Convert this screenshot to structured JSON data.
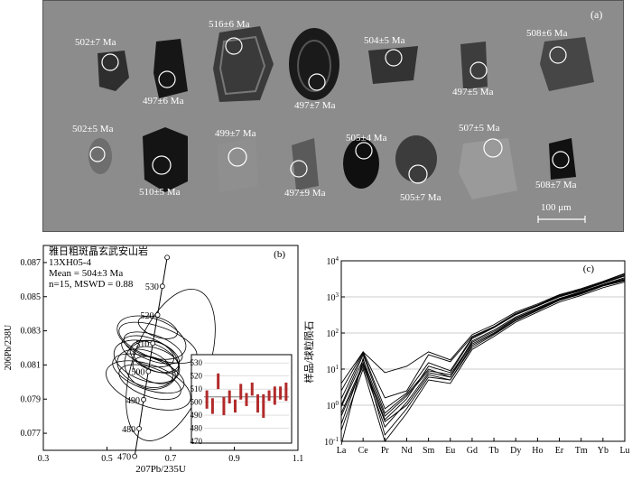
{
  "panel_a": {
    "label": "(a)",
    "scale_bar": "100 μm",
    "ages": [
      "502±7 Ma",
      "497±6 Ma",
      "516±6 Ma",
      "497±7 Ma",
      "504±5 Ma",
      "497±5 Ma",
      "508±6 Ma",
      "502±5 Ma",
      "510±5 Ma",
      "499±7 Ma",
      "497±9 Ma",
      "505±4 Ma",
      "505±7 Ma",
      "507±5 Ma",
      "508±7 Ma"
    ]
  },
  "panel_b": {
    "label": "(b)",
    "title_line1": "雅日粗斑晶玄武安山岩",
    "title_line2": "13XH05-4",
    "title_line3": "Mean = 504±3 Ma",
    "title_line4": "n=15, MSWD = 0.88",
    "xlabel": "207Pb/235U",
    "ylabel": "206Pb/238U",
    "x_ticks": [
      "0.3",
      "0.5",
      "0.7",
      "0.9",
      "1.1"
    ],
    "y_ticks": [
      "0.077",
      "0.079",
      "0.081",
      "0.083",
      "0.085",
      "0.087"
    ],
    "concordia_ages": [
      "470",
      "480",
      "490",
      "500",
      "510",
      "520",
      "530"
    ],
    "inset_y_ticks": [
      "530",
      "520",
      "510",
      "500",
      "490",
      "480",
      "470"
    ]
  },
  "panel_c": {
    "label": "(c)",
    "ylabel": "样品/球粒陨石",
    "elements": [
      "La",
      "Ce",
      "Pr",
      "Nd",
      "Sm",
      "Eu",
      "Gd",
      "Tb",
      "Dy",
      "Ho",
      "Er",
      "Tm",
      "Yb",
      "Lu"
    ],
    "y_tick_exponents": [
      "4",
      "3",
      "2",
      "1",
      "0",
      "-1"
    ]
  },
  "chart_data": [
    {
      "type": "scatter",
      "title": "",
      "xlabel": "207Pb/235U",
      "ylabel": "206Pb/238U",
      "xlim": [
        0.3,
        1.1
      ],
      "ylim": [
        0.076,
        0.088
      ],
      "concordia": [
        {
          "age": 470,
          "x": 0.587,
          "y": 0.07565
        },
        {
          "age": 480,
          "x": 0.601,
          "y": 0.07727
        },
        {
          "age": 490,
          "x": 0.615,
          "y": 0.07897
        },
        {
          "age": 500,
          "x": 0.63,
          "y": 0.08062
        },
        {
          "age": 510,
          "x": 0.644,
          "y": 0.08227
        },
        {
          "age": 520,
          "x": 0.659,
          "y": 0.08393
        },
        {
          "age": 530,
          "x": 0.674,
          "y": 0.08561
        },
        {
          "age": 540,
          "x": 0.689,
          "y": 0.0873
        }
      ],
      "ellipses": [
        {
          "cx": 0.64,
          "cy": 0.081,
          "rx": 0.075,
          "ry": 0.0016
        },
        {
          "cx": 0.625,
          "cy": 0.0812,
          "rx": 0.06,
          "ry": 0.002
        },
        {
          "cx": 0.65,
          "cy": 0.0815,
          "rx": 0.045,
          "ry": 0.0015
        },
        {
          "cx": 0.63,
          "cy": 0.0805,
          "rx": 0.05,
          "ry": 0.0022
        },
        {
          "cx": 0.645,
          "cy": 0.082,
          "rx": 0.04,
          "ry": 0.0018
        },
        {
          "cx": 0.62,
          "cy": 0.0808,
          "rx": 0.055,
          "ry": 0.0017
        },
        {
          "cx": 0.66,
          "cy": 0.0823,
          "rx": 0.05,
          "ry": 0.0024
        },
        {
          "cx": 0.635,
          "cy": 0.08,
          "rx": 0.045,
          "ry": 0.0019
        },
        {
          "cx": 0.655,
          "cy": 0.0813,
          "rx": 0.035,
          "ry": 0.0014
        },
        {
          "cx": 0.64,
          "cy": 0.0826,
          "rx": 0.06,
          "ry": 0.0021
        },
        {
          "cx": 0.628,
          "cy": 0.0818,
          "rx": 0.042,
          "ry": 0.0016
        },
        {
          "cx": 0.648,
          "cy": 0.0807,
          "rx": 0.038,
          "ry": 0.0013
        },
        {
          "cx": 0.66,
          "cy": 0.0832,
          "rx": 0.03,
          "ry": 0.0012
        },
        {
          "cx": 0.7,
          "cy": 0.081,
          "rx": 0.25,
          "ry": 0.0022
        },
        {
          "cx": 0.63,
          "cy": 0.0798,
          "rx": 0.065,
          "ry": 0.0026
        }
      ]
    },
    {
      "type": "bar",
      "title": "",
      "ylim": [
        470,
        535
      ],
      "values": [
        502,
        497,
        516,
        497,
        504,
        497,
        508,
        502,
        510,
        499,
        497,
        505,
        505,
        507,
        508
      ],
      "errors": [
        7,
        6,
        6,
        7,
        5,
        5,
        6,
        5,
        5,
        7,
        9,
        4,
        7,
        5,
        7
      ]
    },
    {
      "type": "line",
      "title": "",
      "xlabel": "",
      "ylabel": "样品/球粒陨石",
      "yscale": "log",
      "ylim": [
        0.1,
        10000
      ],
      "categories": [
        "La",
        "Ce",
        "Pr",
        "Nd",
        "Sm",
        "Eu",
        "Gd",
        "Tb",
        "Dy",
        "Ho",
        "Er",
        "Tm",
        "Yb",
        "Lu"
      ],
      "series": [
        {
          "values": [
            2.5,
            30,
            1.6,
            2.5,
            25,
            16,
            80,
            150,
            350,
            600,
            1100,
            1600,
            2600,
            4300
          ]
        },
        {
          "values": [
            1.0,
            25,
            0.6,
            2.0,
            10,
            6,
            60,
            120,
            280,
            500,
            900,
            1400,
            2200,
            3400
          ]
        },
        {
          "values": [
            0.5,
            12,
            0.25,
            1.2,
            8,
            6,
            50,
            100,
            250,
            450,
            850,
            1300,
            2100,
            3000
          ]
        },
        {
          "values": [
            0.08,
            20,
            0.15,
            0.8,
            6,
            5,
            40,
            90,
            220,
            420,
            800,
            1200,
            2000,
            2800
          ]
        },
        {
          "values": [
            0.3,
            15,
            0.4,
            1.5,
            12,
            8,
            70,
            140,
            320,
            560,
            1000,
            1500,
            2400,
            3800
          ]
        },
        {
          "values": [
            0.9,
            18,
            0.5,
            1.8,
            9,
            7,
            55,
            110,
            260,
            470,
            870,
            1350,
            2150,
            3200
          ]
        },
        {
          "values": [
            0.2,
            10,
            0.1,
            0.6,
            5,
            4,
            35,
            80,
            200,
            380,
            720,
            1100,
            1800,
            2600
          ]
        },
        {
          "values": [
            1.5,
            28,
            0.8,
            2.2,
            15,
            9,
            75,
            145,
            330,
            580,
            1050,
            1550,
            2500,
            4000
          ]
        },
        {
          "values": [
            4.0,
            30,
            8.0,
            12,
            30,
            18,
            90,
            170,
            380,
            640,
            1150,
            1700,
            2700,
            4500
          ]
        },
        {
          "values": [
            0.6,
            14,
            0.35,
            1.0,
            7,
            5,
            45,
            95,
            230,
            430,
            820,
            1250,
            2050,
            2900
          ]
        }
      ]
    }
  ]
}
